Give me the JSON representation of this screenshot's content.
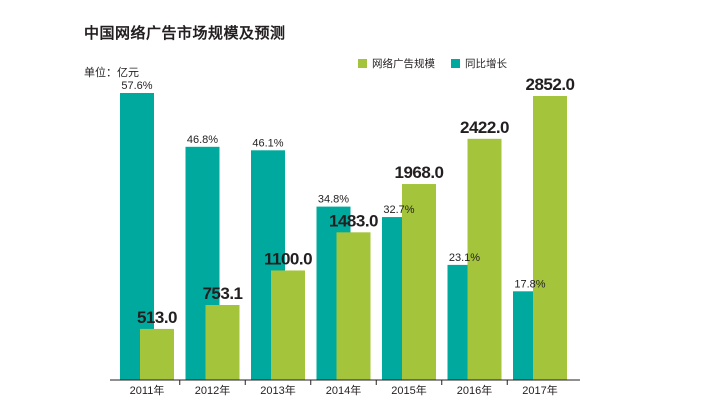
{
  "chart_data": {
    "type": "bar",
    "title": "中国网络广告市场规模及预测",
    "unit": "单位：亿元",
    "categories": [
      "2011年",
      "2012年",
      "2013年",
      "2014年",
      "2015年",
      "2016年",
      "2017年"
    ],
    "series": [
      {
        "name": "同比增长",
        "values": [
          57.6,
          46.8,
          46.1,
          34.8,
          32.7,
          23.1,
          17.8
        ],
        "labels": [
          "57.6%",
          "46.8%",
          "46.1%",
          "34.8%",
          "32.7%",
          "23.1%",
          "17.8%"
        ],
        "color": "#00a99d"
      },
      {
        "name": "网络广告规模",
        "values": [
          513.0,
          753.1,
          1100.0,
          1483.0,
          1968.0,
          2422.0,
          2852.0
        ],
        "labels": [
          "513.0",
          "753.1",
          "1100.0",
          "1483.0",
          "1968.0",
          "2422.0",
          "2852.0"
        ],
        "color": "#a3c43b"
      }
    ],
    "legend": [
      {
        "name": "网络广告规模",
        "color": "#a3c43b"
      },
      {
        "name": "同比增长",
        "color": "#00a99d"
      }
    ],
    "grid": false,
    "legend_position": "top-right"
  }
}
